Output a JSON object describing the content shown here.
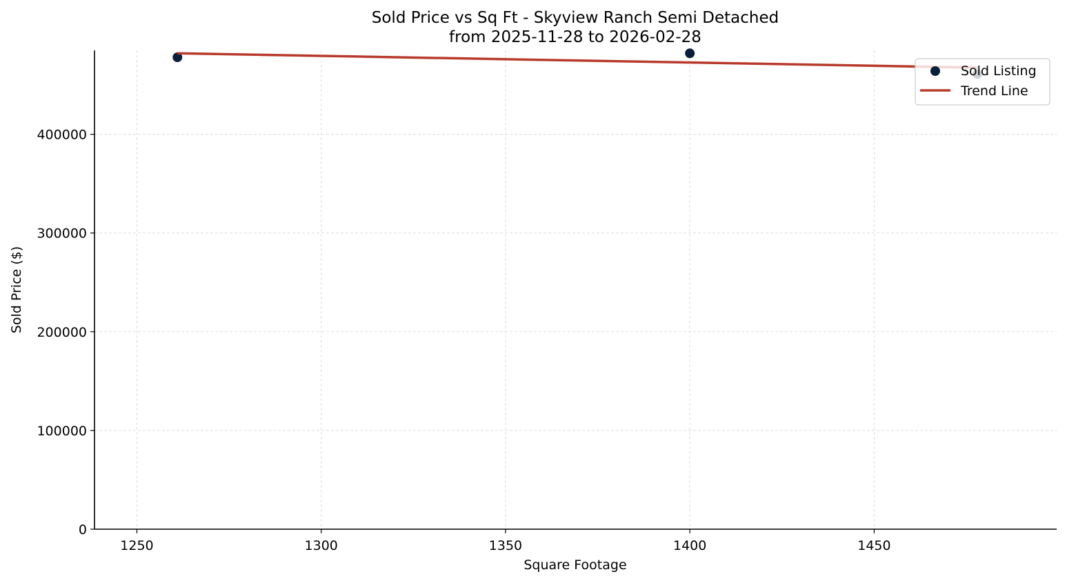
{
  "chart_data": {
    "type": "scatter",
    "title": [
      "Sold Price vs Sq Ft - Skyview Ranch Semi Detached",
      "from 2025-11-28 to 2026-02-28"
    ],
    "xlabel": "Square Footage",
    "ylabel": "Sold Price ($)",
    "xlim": [
      1238.5,
      1499.5
    ],
    "ylim": [
      0,
      485000
    ],
    "xticks": [
      1250,
      1300,
      1350,
      1400,
      1450
    ],
    "yticks": [
      0,
      100000,
      200000,
      300000,
      400000
    ],
    "grid": true,
    "legend_position": "top-right",
    "series": [
      {
        "name": "Sold Listing",
        "kind": "scatter",
        "color": "#0b1f3a",
        "points": [
          {
            "x": 1261,
            "y": 478000
          },
          {
            "x": 1400,
            "y": 482000
          },
          {
            "x": 1478,
            "y": 461000
          }
        ]
      },
      {
        "name": "Trend Line",
        "kind": "line",
        "color": "#b83a2c",
        "points": [
          {
            "x": 1261,
            "y": 482000
          },
          {
            "x": 1478,
            "y": 467500
          }
        ]
      }
    ]
  }
}
